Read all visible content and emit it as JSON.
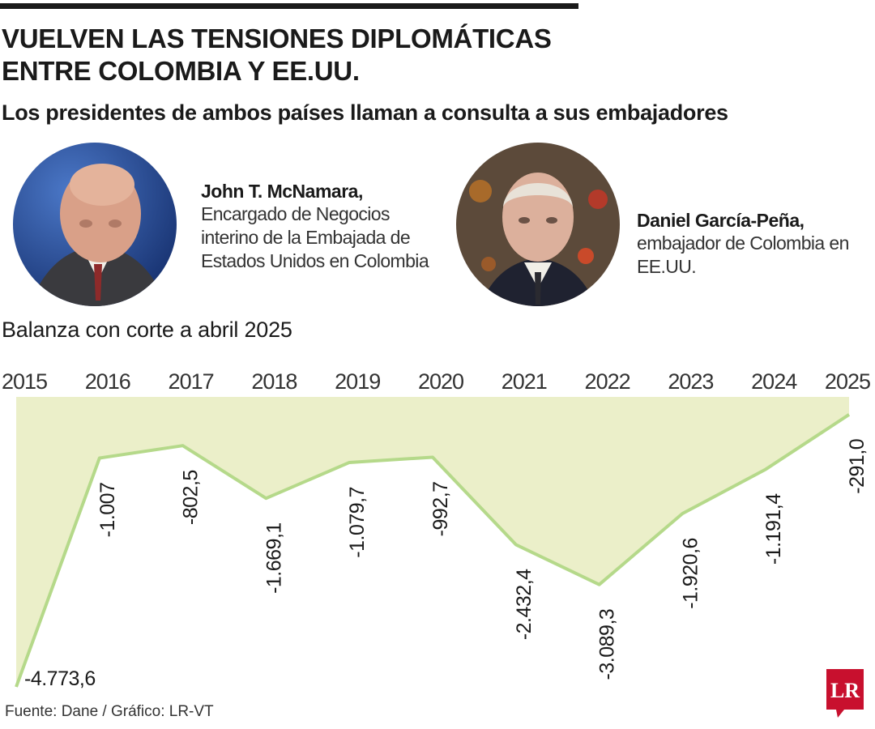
{
  "headline": "VUELVEN LAS TENSIONES DIPLOMÁTICAS ENTRE COLOMBIA Y EE.UU.",
  "subtitle": "Los presidentes de ambos países llaman a consulta a sus embajadores",
  "people": [
    {
      "name": "John T. McNamara,",
      "role": "Encargado de Negocios interino de la Embajada de Estados Unidos en Colombia"
    },
    {
      "name": "Daniel García-Peña,",
      "role": "embajador de Colombia en EE.UU."
    }
  ],
  "source": "Fuente: Dane / Gráfico: LR-VT",
  "logo_text": "LR",
  "colors": {
    "area_fill": "#ebefc9",
    "line": "#b5d98a",
    "logo": "#c8102e",
    "text": "#1a1a1a"
  },
  "chart_data": {
    "type": "area",
    "title": "Balanza con corte a abril 2025",
    "x": [
      "2015",
      "2016",
      "2017",
      "2018",
      "2019",
      "2020",
      "2021",
      "2022",
      "2023",
      "2024",
      "2025"
    ],
    "values": [
      -4773.6,
      -1007,
      -802.5,
      -1669.1,
      -1079.7,
      -992.7,
      -2432.4,
      -3089.3,
      -1920.6,
      -1191.4,
      -291.0
    ],
    "labels": [
      "-4.773,6",
      "-1.007",
      "-802,5",
      "-1.669,1",
      "-1.079,7",
      "-992,7",
      "-2.432,4",
      "-3.089,3",
      "-1.920,6",
      "-1.191,4",
      "-291,0"
    ],
    "ylim": [
      -4773.6,
      0
    ],
    "grid": false,
    "legend": "none"
  }
}
